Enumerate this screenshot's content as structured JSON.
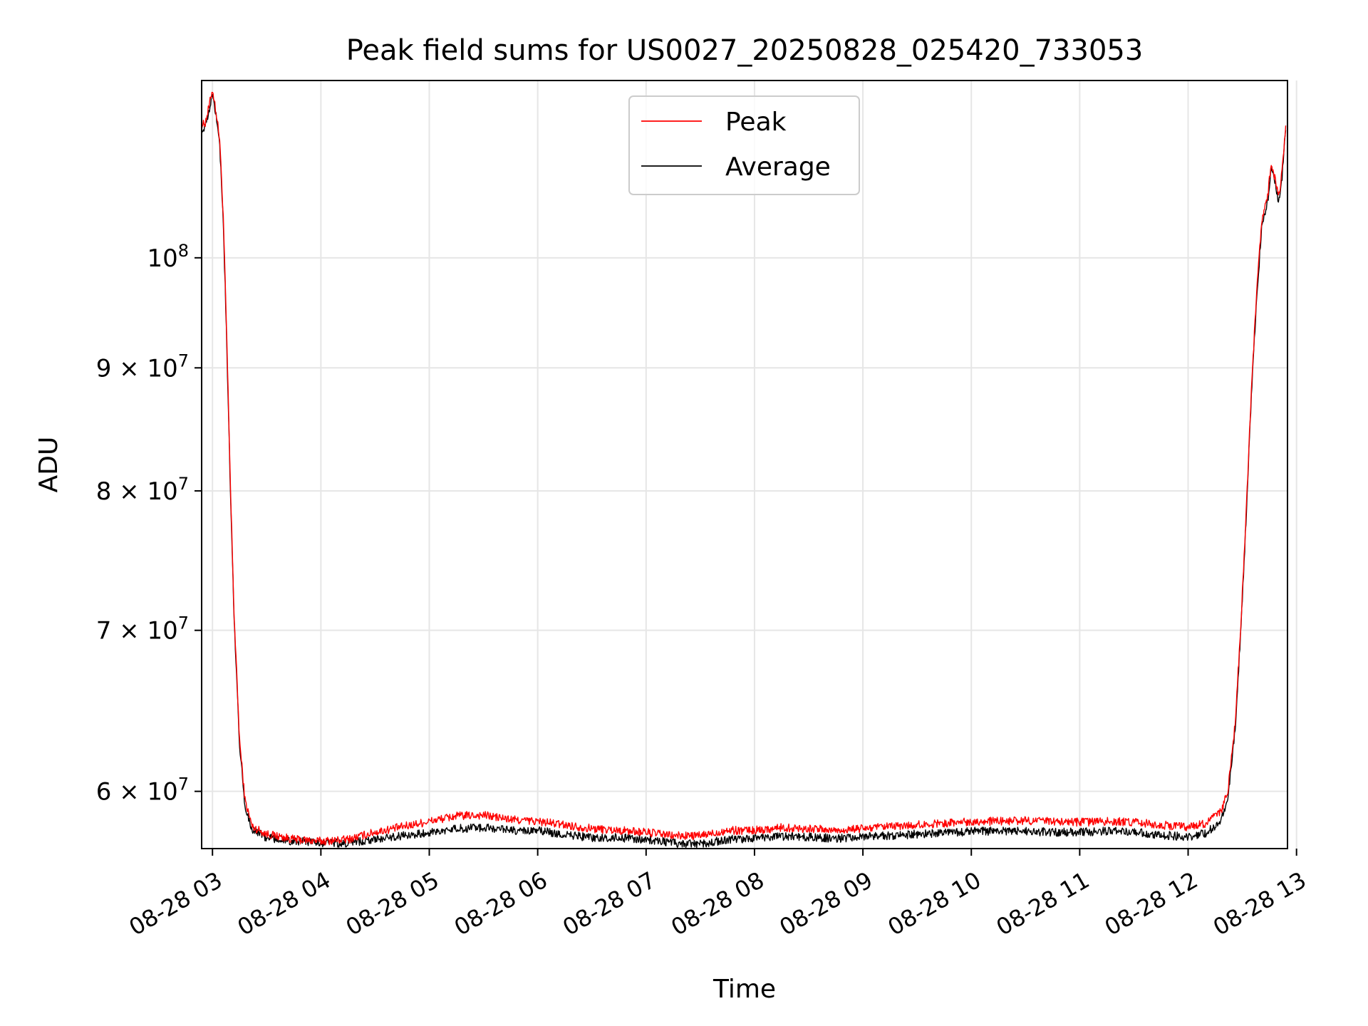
{
  "chart_data": {
    "type": "line",
    "title": "Peak field sums for US0027_20250828_025420_733053",
    "xlabel": "Time",
    "ylabel": "ADU",
    "yscale": "log",
    "grid": true,
    "legend_placement": "upper-center",
    "xlim": [
      "2025-08-28 02:54",
      "2025-08-28 12:55"
    ],
    "ylim": [
      56800000,
      118500000
    ],
    "x_ticks": [
      {
        "t": "2025-08-28 03:00",
        "label": "08-28 03"
      },
      {
        "t": "2025-08-28 04:00",
        "label": "08-28 04"
      },
      {
        "t": "2025-08-28 05:00",
        "label": "08-28 05"
      },
      {
        "t": "2025-08-28 06:00",
        "label": "08-28 06"
      },
      {
        "t": "2025-08-28 07:00",
        "label": "08-28 07"
      },
      {
        "t": "2025-08-28 08:00",
        "label": "08-28 08"
      },
      {
        "t": "2025-08-28 09:00",
        "label": "08-28 09"
      },
      {
        "t": "2025-08-28 10:00",
        "label": "08-28 10"
      },
      {
        "t": "2025-08-28 11:00",
        "label": "08-28 11"
      },
      {
        "t": "2025-08-28 12:00",
        "label": "08-28 12"
      },
      {
        "t": "2025-08-28 13:00",
        "label": "08-28 13"
      }
    ],
    "y_ticks": [
      {
        "value": 60000000,
        "mantissa": "6",
        "label": "6 × 10^7"
      },
      {
        "value": 70000000,
        "mantissa": "7",
        "label": "7 × 10^7"
      },
      {
        "value": 80000000,
        "mantissa": "8",
        "label": "8 × 10^7"
      },
      {
        "value": 90000000,
        "mantissa": "9",
        "label": "9 × 10^7"
      },
      {
        "value": 100000000,
        "mantissa": "",
        "label": "10^8"
      }
    ],
    "series": [
      {
        "name": "Peak",
        "color": "#ff0000",
        "points": [
          [
            "2025-08-28 02:54",
            113500000
          ],
          [
            "2025-08-28 02:56",
            113800000
          ],
          [
            "2025-08-28 02:58",
            115500000
          ],
          [
            "2025-08-28 03:00",
            117500000
          ],
          [
            "2025-08-28 03:02",
            115000000
          ],
          [
            "2025-08-28 03:04",
            112000000
          ],
          [
            "2025-08-28 03:06",
            104000000
          ],
          [
            "2025-08-28 03:08",
            92000000
          ],
          [
            "2025-08-28 03:10",
            80000000
          ],
          [
            "2025-08-28 03:12",
            71000000
          ],
          [
            "2025-08-28 03:15",
            63000000
          ],
          [
            "2025-08-28 03:18",
            59500000
          ],
          [
            "2025-08-28 03:22",
            58000000
          ],
          [
            "2025-08-28 03:30",
            57600000
          ],
          [
            "2025-08-28 03:45",
            57300000
          ],
          [
            "2025-08-28 04:00",
            57200000
          ],
          [
            "2025-08-28 04:15",
            57300000
          ],
          [
            "2025-08-28 04:30",
            57700000
          ],
          [
            "2025-08-28 04:45",
            58000000
          ],
          [
            "2025-08-28 05:00",
            58300000
          ],
          [
            "2025-08-28 05:15",
            58600000
          ],
          [
            "2025-08-28 05:30",
            58650000
          ],
          [
            "2025-08-28 05:45",
            58400000
          ],
          [
            "2025-08-28 06:00",
            58300000
          ],
          [
            "2025-08-28 06:15",
            58100000
          ],
          [
            "2025-08-28 06:30",
            57900000
          ],
          [
            "2025-08-28 06:45",
            57800000
          ],
          [
            "2025-08-28 07:00",
            57700000
          ],
          [
            "2025-08-28 07:15",
            57500000
          ],
          [
            "2025-08-28 07:30",
            57500000
          ],
          [
            "2025-08-28 07:45",
            57800000
          ],
          [
            "2025-08-28 08:00",
            57800000
          ],
          [
            "2025-08-28 08:15",
            57950000
          ],
          [
            "2025-08-28 08:30",
            57900000
          ],
          [
            "2025-08-28 08:45",
            57800000
          ],
          [
            "2025-08-28 09:00",
            57900000
          ],
          [
            "2025-08-28 09:15",
            58000000
          ],
          [
            "2025-08-28 09:30",
            58100000
          ],
          [
            "2025-08-28 09:45",
            58200000
          ],
          [
            "2025-08-28 10:00",
            58300000
          ],
          [
            "2025-08-28 10:15",
            58300000
          ],
          [
            "2025-08-28 10:30",
            58350000
          ],
          [
            "2025-08-28 10:45",
            58300000
          ],
          [
            "2025-08-28 11:00",
            58250000
          ],
          [
            "2025-08-28 11:15",
            58300000
          ],
          [
            "2025-08-28 11:30",
            58250000
          ],
          [
            "2025-08-28 11:45",
            58100000
          ],
          [
            "2025-08-28 12:00",
            58000000
          ],
          [
            "2025-08-28 12:10",
            58200000
          ],
          [
            "2025-08-28 12:18",
            58800000
          ],
          [
            "2025-08-28 12:22",
            60000000
          ],
          [
            "2025-08-28 12:26",
            64000000
          ],
          [
            "2025-08-28 12:29",
            70000000
          ],
          [
            "2025-08-28 12:32",
            78000000
          ],
          [
            "2025-08-28 12:35",
            88000000
          ],
          [
            "2025-08-28 12:38",
            97000000
          ],
          [
            "2025-08-28 12:41",
            104000000
          ],
          [
            "2025-08-28 12:44",
            106000000
          ],
          [
            "2025-08-28 12:46",
            109500000
          ],
          [
            "2025-08-28 12:48",
            108000000
          ],
          [
            "2025-08-28 12:50",
            106000000
          ],
          [
            "2025-08-28 12:52",
            108500000
          ],
          [
            "2025-08-28 12:54",
            113500000
          ]
        ]
      },
      {
        "name": "Average",
        "color": "#000000",
        "points": [
          [
            "2025-08-28 02:54",
            113000000
          ],
          [
            "2025-08-28 02:56",
            113300000
          ],
          [
            "2025-08-28 02:58",
            115000000
          ],
          [
            "2025-08-28 03:00",
            117300000
          ],
          [
            "2025-08-28 03:02",
            114500000
          ],
          [
            "2025-08-28 03:04",
            111500000
          ],
          [
            "2025-08-28 03:06",
            103500000
          ],
          [
            "2025-08-28 03:08",
            91500000
          ],
          [
            "2025-08-28 03:10",
            79500000
          ],
          [
            "2025-08-28 03:12",
            70500000
          ],
          [
            "2025-08-28 03:15",
            62700000
          ],
          [
            "2025-08-28 03:18",
            59200000
          ],
          [
            "2025-08-28 03:22",
            57800000
          ],
          [
            "2025-08-28 03:30",
            57400000
          ],
          [
            "2025-08-28 03:45",
            57200000
          ],
          [
            "2025-08-28 04:00",
            57100000
          ],
          [
            "2025-08-28 04:15",
            57100000
          ],
          [
            "2025-08-28 04:30",
            57300000
          ],
          [
            "2025-08-28 04:45",
            57500000
          ],
          [
            "2025-08-28 05:00",
            57700000
          ],
          [
            "2025-08-28 05:15",
            57900000
          ],
          [
            "2025-08-28 05:30",
            57950000
          ],
          [
            "2025-08-28 05:45",
            57800000
          ],
          [
            "2025-08-28 06:00",
            57800000
          ],
          [
            "2025-08-28 06:15",
            57550000
          ],
          [
            "2025-08-28 06:30",
            57400000
          ],
          [
            "2025-08-28 06:45",
            57400000
          ],
          [
            "2025-08-28 07:00",
            57300000
          ],
          [
            "2025-08-28 07:15",
            57100000
          ],
          [
            "2025-08-28 07:30",
            57050000
          ],
          [
            "2025-08-28 07:45",
            57300000
          ],
          [
            "2025-08-28 08:00",
            57350000
          ],
          [
            "2025-08-28 08:15",
            57450000
          ],
          [
            "2025-08-28 08:30",
            57450000
          ],
          [
            "2025-08-28 08:45",
            57350000
          ],
          [
            "2025-08-28 09:00",
            57450000
          ],
          [
            "2025-08-28 09:15",
            57500000
          ],
          [
            "2025-08-28 09:30",
            57600000
          ],
          [
            "2025-08-28 09:45",
            57650000
          ],
          [
            "2025-08-28 10:00",
            57750000
          ],
          [
            "2025-08-28 10:15",
            57750000
          ],
          [
            "2025-08-28 10:30",
            57750000
          ],
          [
            "2025-08-28 10:45",
            57700000
          ],
          [
            "2025-08-28 11:00",
            57700000
          ],
          [
            "2025-08-28 11:15",
            57750000
          ],
          [
            "2025-08-28 11:30",
            57700000
          ],
          [
            "2025-08-28 11:45",
            57550000
          ],
          [
            "2025-08-28 12:00",
            57450000
          ],
          [
            "2025-08-28 12:10",
            57650000
          ],
          [
            "2025-08-28 12:18",
            58300000
          ],
          [
            "2025-08-28 12:22",
            59600000
          ],
          [
            "2025-08-28 12:26",
            63600000
          ],
          [
            "2025-08-28 12:29",
            69600000
          ],
          [
            "2025-08-28 12:32",
            77600000
          ],
          [
            "2025-08-28 12:35",
            87600000
          ],
          [
            "2025-08-28 12:38",
            96500000
          ],
          [
            "2025-08-28 12:41",
            103500000
          ],
          [
            "2025-08-28 12:44",
            105500000
          ],
          [
            "2025-08-28 12:46",
            109000000
          ],
          [
            "2025-08-28 12:48",
            107500000
          ],
          [
            "2025-08-28 12:50",
            105500000
          ],
          [
            "2025-08-28 12:52",
            108000000
          ],
          [
            "2025-08-28 12:54",
            113000000
          ]
        ]
      }
    ]
  }
}
